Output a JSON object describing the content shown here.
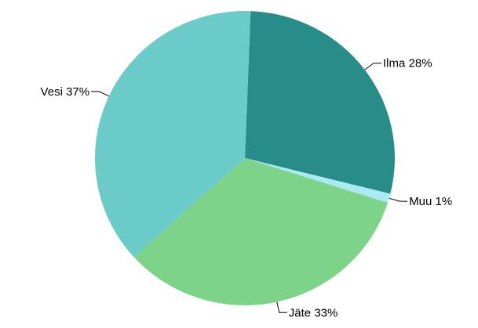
{
  "chart_data": {
    "type": "pie",
    "slices": [
      {
        "label": "Ilma",
        "value": 28,
        "value_label": "28%",
        "color": "#288c88"
      },
      {
        "label": "Muu",
        "value": 1,
        "value_label": "1%",
        "color": "#aaeaf2"
      },
      {
        "label": "Jäte",
        "value": 33,
        "value_label": "33%",
        "color": "#7dd488"
      },
      {
        "label": "Vesi",
        "value": 37,
        "value_label": "37%",
        "color": "#6bcbc8"
      }
    ],
    "start_angle_deg": -87.8,
    "direction": "clockwise",
    "legend": "none",
    "title": ""
  }
}
